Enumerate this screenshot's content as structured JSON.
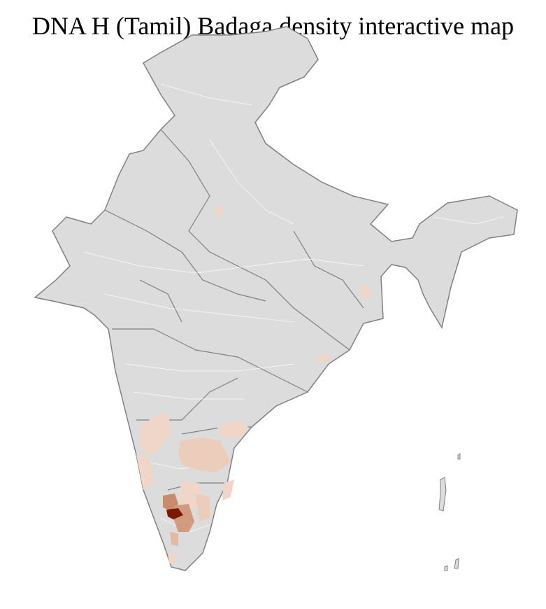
{
  "title": "DNA H (Tamil) Badaga density interactive map",
  "colors": {
    "base": "#dcdcdc",
    "district_border": "#ffffff",
    "state_border": "#808080",
    "density_low": "#f0d6c8",
    "density_mid": "#e3b9a3",
    "density_high": "#c98a6d",
    "density_peak": "#7a1a00"
  }
}
